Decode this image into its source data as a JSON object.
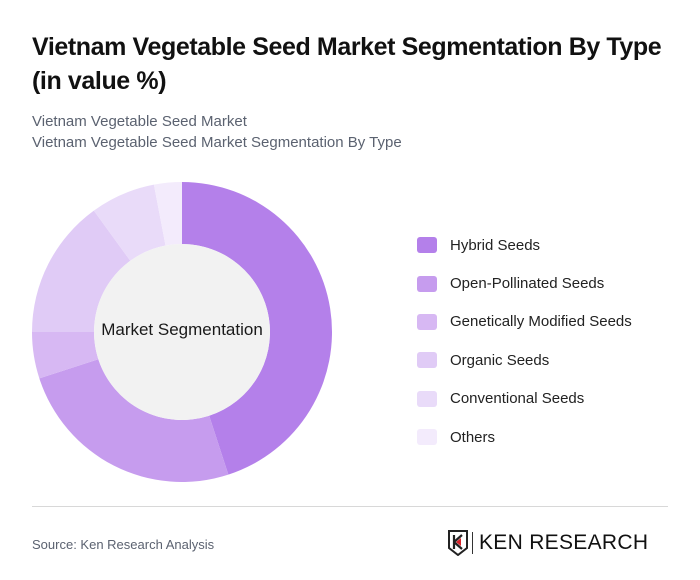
{
  "header": {
    "title": "Vietnam Vegetable Seed Market Segmentation By Type (in value %)",
    "subtitle_1": "Vietnam Vegetable Seed Market",
    "subtitle_2": "Vietnam Vegetable Seed Market Segmentation By Type"
  },
  "chart": {
    "center_label": "Market Segmentation"
  },
  "legend": [
    {
      "label": "Hybrid Seeds",
      "color": "#b480ea"
    },
    {
      "label": "Open-Pollinated Seeds",
      "color": "#c69cee"
    },
    {
      "label": "Genetically Modified Seeds",
      "color": "#d7b8f3"
    },
    {
      "label": "Organic Seeds",
      "color": "#e0cbf6"
    },
    {
      "label": "Conventional Seeds",
      "color": "#e9dbf9"
    },
    {
      "label": "Others",
      "color": "#f3ebfc"
    }
  ],
  "footer": {
    "source": "Source: Ken Research Analysis",
    "logo_text": "KEN RESEARCH"
  },
  "chart_data": {
    "type": "pie",
    "subtype": "donut",
    "title": "Vietnam Vegetable Seed Market Segmentation By Type (in value %)",
    "center_label": "Market Segmentation",
    "categories": [
      "Hybrid Seeds",
      "Open-Pollinated Seeds",
      "Genetically Modified Seeds",
      "Organic Seeds",
      "Conventional Seeds",
      "Others"
    ],
    "values": [
      45,
      25,
      5,
      15,
      7,
      3
    ],
    "colors": [
      "#b480ea",
      "#c69cee",
      "#d7b8f3",
      "#e0cbf6",
      "#e9dbf9",
      "#f3ebfc"
    ],
    "unit": "%",
    "legend_position": "right",
    "start_angle": "top, clockwise"
  }
}
